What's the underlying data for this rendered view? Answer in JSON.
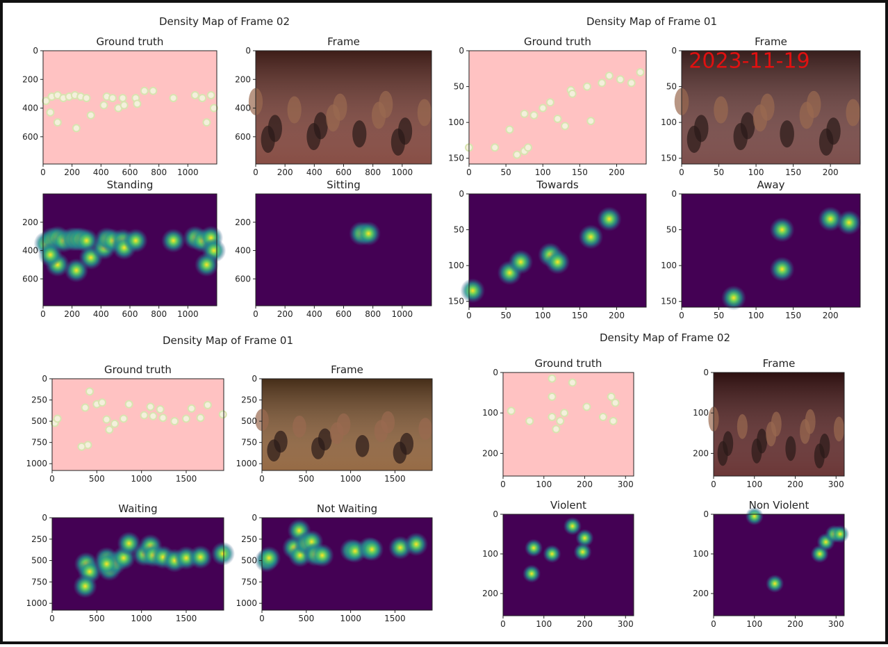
{
  "panels": [
    {
      "title": "Density Map of Frame 02",
      "charts": [
        {
          "type": "scatter",
          "title": "Ground truth",
          "color": "#ffc2c2",
          "xlim": [
            0,
            1200
          ],
          "ylim": [
            0,
            790
          ],
          "xticks": [
            0,
            200,
            400,
            600,
            800,
            1000
          ],
          "yticks": [
            0,
            200,
            400,
            600
          ],
          "x": [
            20,
            60,
            100,
            140,
            180,
            220,
            260,
            300,
            330,
            420,
            440,
            480,
            520,
            550,
            560,
            640,
            650,
            700,
            760,
            900,
            1050,
            1100,
            1160,
            1180,
            1130,
            230,
            100,
            50
          ],
          "y": [
            350,
            320,
            310,
            330,
            320,
            310,
            320,
            330,
            450,
            380,
            320,
            330,
            400,
            330,
            380,
            330,
            370,
            280,
            280,
            330,
            310,
            330,
            310,
            400,
            500,
            540,
            500,
            430
          ]
        },
        {
          "type": "image",
          "title": "Frame",
          "color": "#7a3a30",
          "xlim": [
            0,
            1200
          ],
          "ylim": [
            0,
            790
          ],
          "xticks": [
            0,
            200,
            400,
            600,
            800,
            1000
          ],
          "yticks": [
            0,
            200,
            400,
            600
          ]
        },
        {
          "type": "heatmap",
          "title": "Standing",
          "color": "#440154",
          "xlim": [
            0,
            1200
          ],
          "ylim": [
            0,
            790
          ],
          "xticks": [
            0,
            200,
            400,
            600,
            800,
            1000
          ],
          "yticks": [
            200,
            400,
            600
          ],
          "x": [
            20,
            60,
            100,
            140,
            200,
            230,
            260,
            300,
            330,
            420,
            440,
            480,
            550,
            560,
            640,
            900,
            1050,
            1100,
            1160,
            1180,
            1130,
            230,
            100,
            50
          ],
          "y": [
            350,
            320,
            310,
            330,
            320,
            320,
            320,
            330,
            450,
            380,
            320,
            330,
            330,
            380,
            330,
            330,
            310,
            330,
            310,
            400,
            500,
            540,
            500,
            430
          ]
        },
        {
          "type": "heatmap",
          "title": "Sitting",
          "color": "#440154",
          "xlim": [
            0,
            1200
          ],
          "ylim": [
            0,
            790
          ],
          "xticks": [
            0,
            200,
            400,
            600,
            800,
            1000
          ],
          "yticks": [
            200,
            400,
            600
          ],
          "x": [
            720,
            770
          ],
          "y": [
            280,
            280
          ]
        }
      ]
    },
    {
      "title": "Density Map of Frame 01",
      "charts": [
        {
          "type": "scatter",
          "title": "Ground truth",
          "color": "#ffc2c2",
          "xlim": [
            0,
            240
          ],
          "ylim": [
            0,
            158
          ],
          "xticks": [
            0,
            50,
            100,
            150,
            200
          ],
          "yticks": [
            0,
            50,
            100,
            150
          ],
          "x": [
            0,
            35,
            55,
            65,
            75,
            80,
            75,
            88,
            100,
            110,
            120,
            130,
            138,
            140,
            160,
            165,
            180,
            190,
            205,
            220,
            232
          ],
          "y": [
            135,
            135,
            110,
            145,
            140,
            135,
            88,
            90,
            80,
            72,
            95,
            105,
            55,
            60,
            50,
            98,
            45,
            35,
            40,
            45,
            30
          ]
        },
        {
          "type": "image",
          "title": "Frame",
          "color": "#6e3b38",
          "annotation": "2023-11-19",
          "xlim": [
            0,
            240
          ],
          "ylim": [
            0,
            158
          ],
          "xticks": [
            0,
            50,
            100,
            150,
            200
          ],
          "yticks": [
            0,
            50,
            100,
            150
          ]
        },
        {
          "type": "heatmap",
          "title": "Towards",
          "color": "#440154",
          "xlim": [
            0,
            240
          ],
          "ylim": [
            0,
            158
          ],
          "xticks": [
            0,
            50,
            100,
            150,
            200
          ],
          "yticks": [
            0,
            50,
            100,
            150
          ],
          "x": [
            5,
            55,
            70,
            110,
            120,
            165,
            190
          ],
          "y": [
            135,
            110,
            95,
            85,
            95,
            60,
            35
          ]
        },
        {
          "type": "heatmap",
          "title": "Away",
          "color": "#440154",
          "xlim": [
            0,
            240
          ],
          "ylim": [
            0,
            158
          ],
          "xticks": [
            0,
            50,
            100,
            150,
            200
          ],
          "yticks": [
            0,
            50,
            100,
            150
          ],
          "x": [
            70,
            135,
            135,
            200,
            225
          ],
          "y": [
            145,
            105,
            50,
            35,
            40
          ]
        }
      ]
    },
    {
      "title": "Density Map of Frame 01",
      "charts": [
        {
          "type": "scatter",
          "title": "Ground truth",
          "color": "#ffc2c2",
          "xlim": [
            0,
            1920
          ],
          "ylim": [
            0,
            1080
          ],
          "xticks": [
            0,
            500,
            1000,
            1500
          ],
          "yticks": [
            0,
            250,
            500,
            750,
            1000
          ],
          "x": [
            30,
            60,
            370,
            420,
            400,
            330,
            500,
            560,
            610,
            640,
            700,
            800,
            860,
            1030,
            1100,
            1130,
            1240,
            1370,
            1500,
            1660,
            1910,
            1210,
            1560,
            1740
          ],
          "y": [
            520,
            470,
            340,
            150,
            780,
            800,
            300,
            280,
            480,
            600,
            530,
            470,
            300,
            430,
            330,
            440,
            460,
            500,
            470,
            460,
            420,
            360,
            350,
            310
          ]
        },
        {
          "type": "image",
          "title": "Frame",
          "color": "#8a5a30",
          "xlim": [
            0,
            1920
          ],
          "ylim": [
            0,
            1080
          ],
          "xticks": [
            0,
            500,
            1000,
            1500
          ],
          "yticks": [
            0,
            250,
            500,
            750,
            1000
          ]
        },
        {
          "type": "heatmap",
          "title": "Waiting",
          "color": "#440154",
          "xlim": [
            0,
            1920
          ],
          "ylim": [
            0,
            1080
          ],
          "xticks": [
            0,
            500,
            1000,
            1500
          ],
          "yticks": [
            0,
            250,
            500,
            750,
            1000
          ],
          "x": [
            380,
            420,
            610,
            640,
            700,
            800,
            860,
            1030,
            1100,
            1130,
            1240,
            1370,
            1500,
            1660,
            1910,
            370,
            610
          ],
          "y": [
            540,
            630,
            480,
            600,
            530,
            470,
            300,
            430,
            330,
            440,
            460,
            500,
            470,
            460,
            420,
            800,
            540
          ]
        },
        {
          "type": "heatmap",
          "title": "Not Waiting",
          "color": "#440154",
          "xlim": [
            0,
            1920
          ],
          "ylim": [
            0,
            1080
          ],
          "xticks": [
            0,
            500,
            1000,
            1500
          ],
          "yticks": [
            0,
            250,
            500,
            750,
            1000
          ],
          "x": [
            50,
            80,
            360,
            420,
            430,
            500,
            560,
            600,
            680,
            1010,
            1050,
            1210,
            1240,
            1560,
            1740
          ],
          "y": [
            500,
            470,
            350,
            150,
            440,
            300,
            280,
            430,
            440,
            380,
            390,
            360,
            370,
            350,
            310
          ]
        }
      ]
    },
    {
      "title": "Density Map of Frame 02",
      "charts": [
        {
          "type": "scatter",
          "title": "Ground truth",
          "color": "#ffc2c2",
          "xlim": [
            0,
            320
          ],
          "ylim": [
            0,
            256
          ],
          "xticks": [
            0,
            100,
            200,
            300
          ],
          "yticks": [
            0,
            100,
            200
          ],
          "x": [
            20,
            65,
            120,
            120,
            120,
            140,
            150,
            130,
            170,
            205,
            245,
            265,
            275,
            270
          ],
          "y": [
            95,
            120,
            15,
            60,
            110,
            120,
            100,
            140,
            25,
            85,
            110,
            60,
            75,
            120
          ]
        },
        {
          "type": "image",
          "title": "Frame",
          "color": "#5a2020",
          "xlim": [
            0,
            320
          ],
          "ylim": [
            0,
            256
          ],
          "xticks": [
            0,
            100,
            200,
            300
          ],
          "yticks": [
            0,
            100,
            200
          ]
        },
        {
          "type": "heatmap",
          "title": "Violent",
          "color": "#440154",
          "xlim": [
            0,
            320
          ],
          "ylim": [
            0,
            256
          ],
          "xticks": [
            0,
            100,
            200,
            300
          ],
          "yticks": [
            0,
            100,
            200
          ],
          "x": [
            70,
            75,
            120,
            170,
            200,
            195
          ],
          "y": [
            150,
            85,
            100,
            30,
            60,
            95
          ]
        },
        {
          "type": "heatmap",
          "title": "Non Violent",
          "color": "#440154",
          "xlim": [
            0,
            320
          ],
          "ylim": [
            0,
            256
          ],
          "xticks": [
            0,
            100,
            200,
            300
          ],
          "yticks": [
            0,
            100,
            200
          ],
          "x": [
            100,
            150,
            260,
            275,
            295,
            310
          ],
          "y": [
            5,
            175,
            100,
            70,
            50,
            50
          ]
        }
      ]
    }
  ]
}
